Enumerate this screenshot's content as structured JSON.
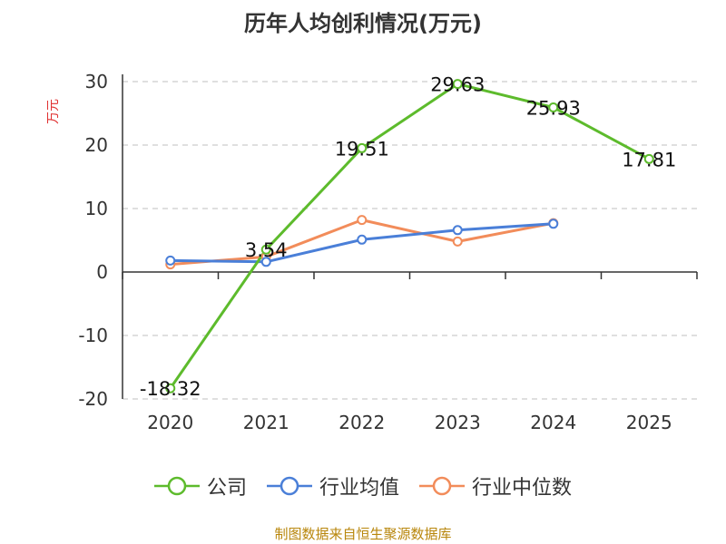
{
  "chart_data": {
    "type": "line",
    "title": "历年人均创利情况(万元)",
    "ylabel": "万元",
    "xlabel": "",
    "categories": [
      "2020",
      "2021",
      "2022",
      "2023",
      "2024",
      "2025"
    ],
    "ylim": [
      -20,
      30
    ],
    "yticks": [
      30,
      20,
      10,
      0,
      -10,
      -20
    ],
    "ytick_labels": [
      "30",
      "20",
      "10",
      "0",
      "-10",
      "-20"
    ],
    "grid": true,
    "legend_position": "bottom",
    "series": [
      {
        "name": "公司",
        "color": "#5dbb2c",
        "values": [
          -18.32,
          3.54,
          19.51,
          29.63,
          25.93,
          17.81
        ],
        "labels": [
          "-18.32",
          "3.54",
          "19.51",
          "29.63",
          "25.93",
          "17.81"
        ]
      },
      {
        "name": "行业均值",
        "color": "#4a7fd8",
        "values": [
          1.8,
          1.6,
          5.1,
          6.6,
          7.6,
          null
        ]
      },
      {
        "name": "行业中位数",
        "color": "#f28c5a",
        "values": [
          1.2,
          2.4,
          8.2,
          4.8,
          7.7,
          null
        ]
      }
    ]
  },
  "footer": "制图数据来自恒生聚源数据库"
}
